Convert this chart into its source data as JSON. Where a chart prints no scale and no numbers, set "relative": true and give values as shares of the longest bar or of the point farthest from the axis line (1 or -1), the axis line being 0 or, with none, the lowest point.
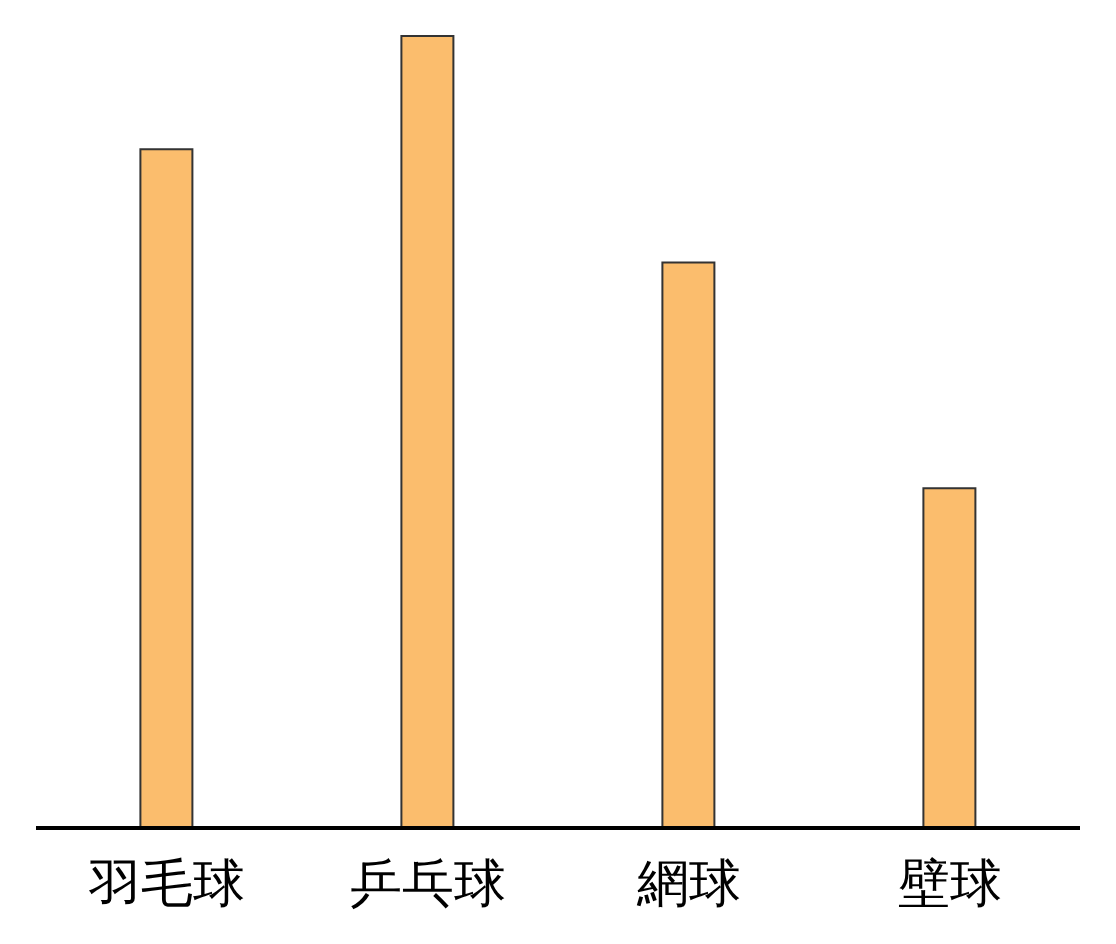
{
  "chart_data": {
    "type": "bar",
    "relative": true,
    "categories": [
      "羽毛球",
      "乒乓球",
      "網球",
      "壁球"
    ],
    "values": [
      0.857,
      1,
      0.714,
      0.429
    ],
    "color": "#fbbd6d"
  }
}
